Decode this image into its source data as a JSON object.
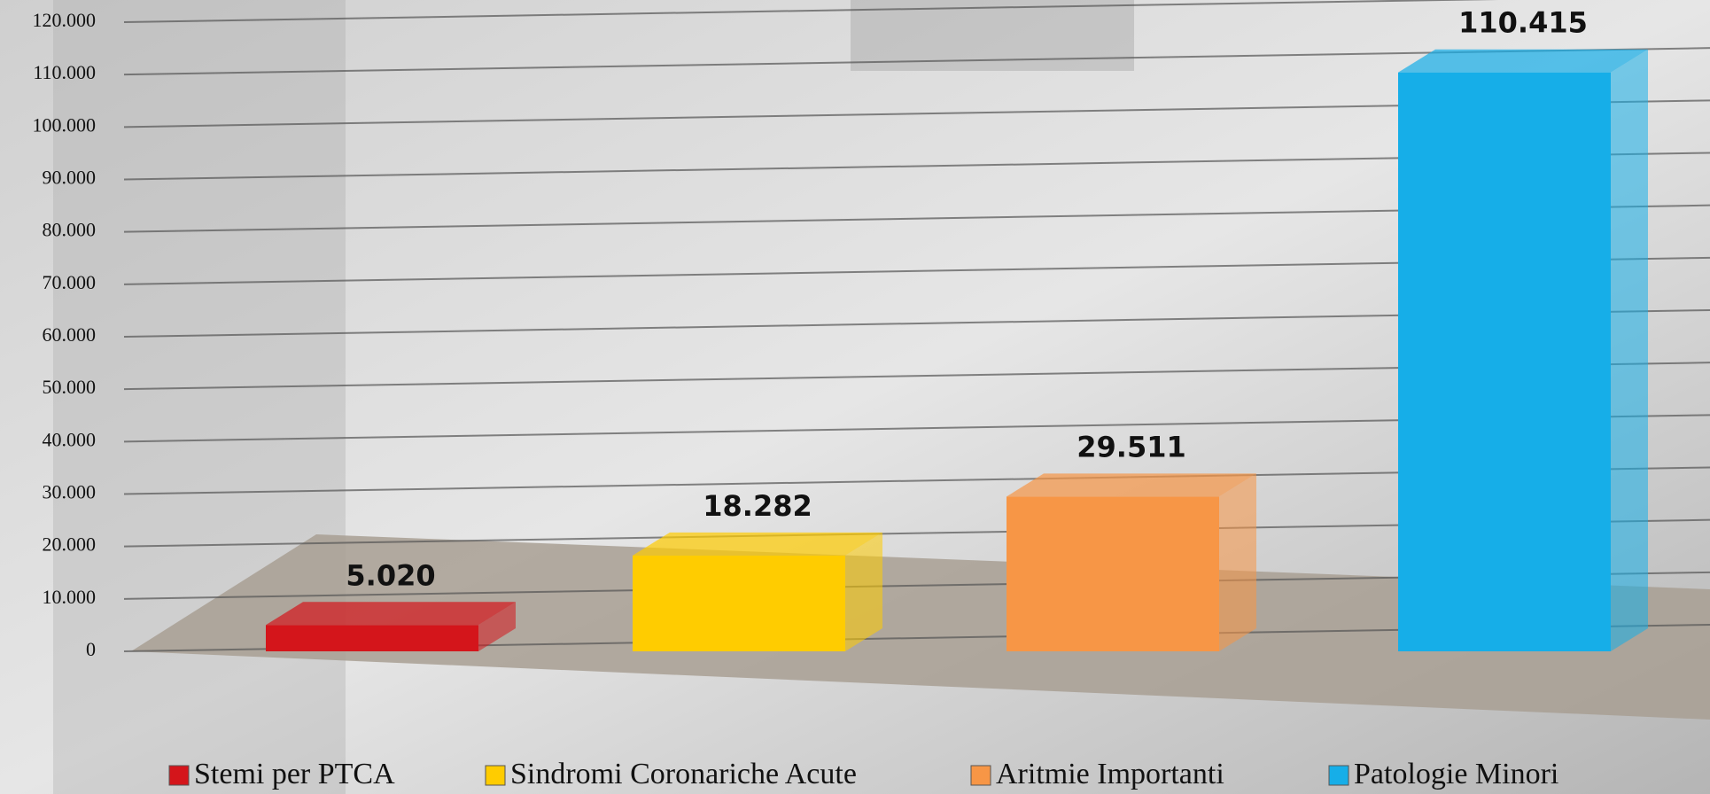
{
  "chart_data": {
    "type": "bar",
    "categories": [
      "Stemi per PTCA",
      "Sindromi Coronariche Acute",
      "Aritmie Importanti",
      "Patologie Minori"
    ],
    "values": [
      5020,
      18282,
      29511,
      110415
    ],
    "value_labels": [
      "5.020",
      "18.282",
      "29.511",
      "110.415"
    ],
    "colors": [
      "#d4151b",
      "#ffcc00",
      "#f79646",
      "#16aee8"
    ],
    "ylim": [
      0,
      120000
    ],
    "yticks": [
      0,
      {
        "value": 10000,
        "label": "10.000"
      },
      {
        "value": 20000,
        "label": "20.000"
      },
      {
        "value": 30000,
        "label": "30.000"
      },
      {
        "value": 40000,
        "label": "40.000"
      },
      {
        "value": 50000,
        "label": "50.000"
      },
      {
        "value": 60000,
        "label": "60.000"
      },
      {
        "value": 70000,
        "label": "70.000"
      },
      {
        "value": 80000,
        "label": "80.000"
      },
      {
        "value": 90000,
        "label": "90.000"
      },
      {
        "value": 100000,
        "label": "100.000"
      },
      {
        "value": 110000,
        "label": "110.000"
      },
      {
        "value": 120000,
        "label": "120.000"
      }
    ],
    "grid": true,
    "legend": "bottom"
  }
}
